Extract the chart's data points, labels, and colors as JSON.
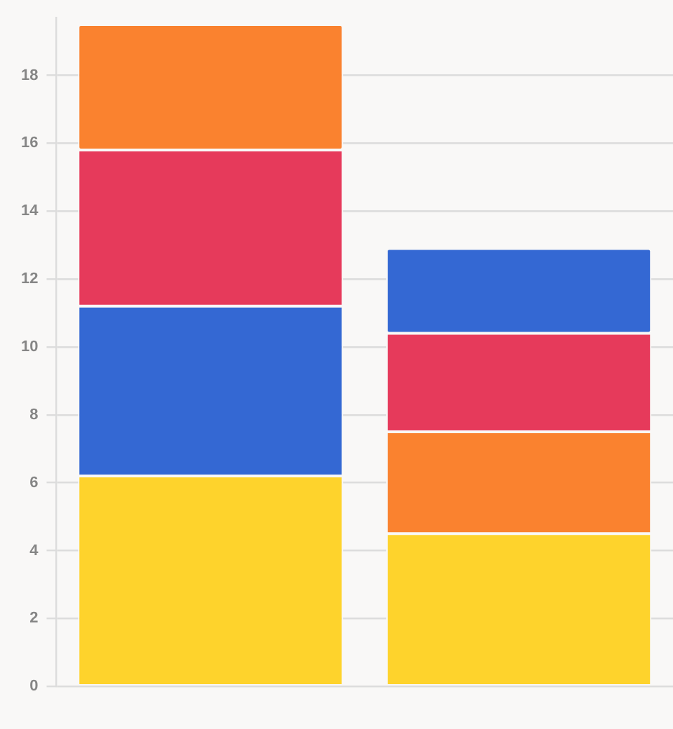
{
  "chart_data": {
    "type": "bar",
    "categories": [
      null,
      null
    ],
    "stacked": true,
    "series": [
      {
        "colors": [
          "#fed32c",
          "#fed32c"
        ],
        "values": [
          6.2,
          4.5
        ]
      },
      {
        "colors": [
          "#3468d3",
          "#fa822f"
        ],
        "values": [
          5.0,
          3.0
        ]
      },
      {
        "colors": [
          "#e63a5b",
          "#e63a5b"
        ],
        "values": [
          4.6,
          2.9
        ]
      },
      {
        "colors": [
          "#fa822f",
          "#3468d3"
        ],
        "values": [
          3.7,
          2.5
        ]
      }
    ],
    "ylim": [
      0,
      19.7
    ],
    "yticks": [
      0,
      2,
      4,
      6,
      8,
      10,
      12,
      14,
      16,
      18
    ],
    "grid": "y"
  }
}
